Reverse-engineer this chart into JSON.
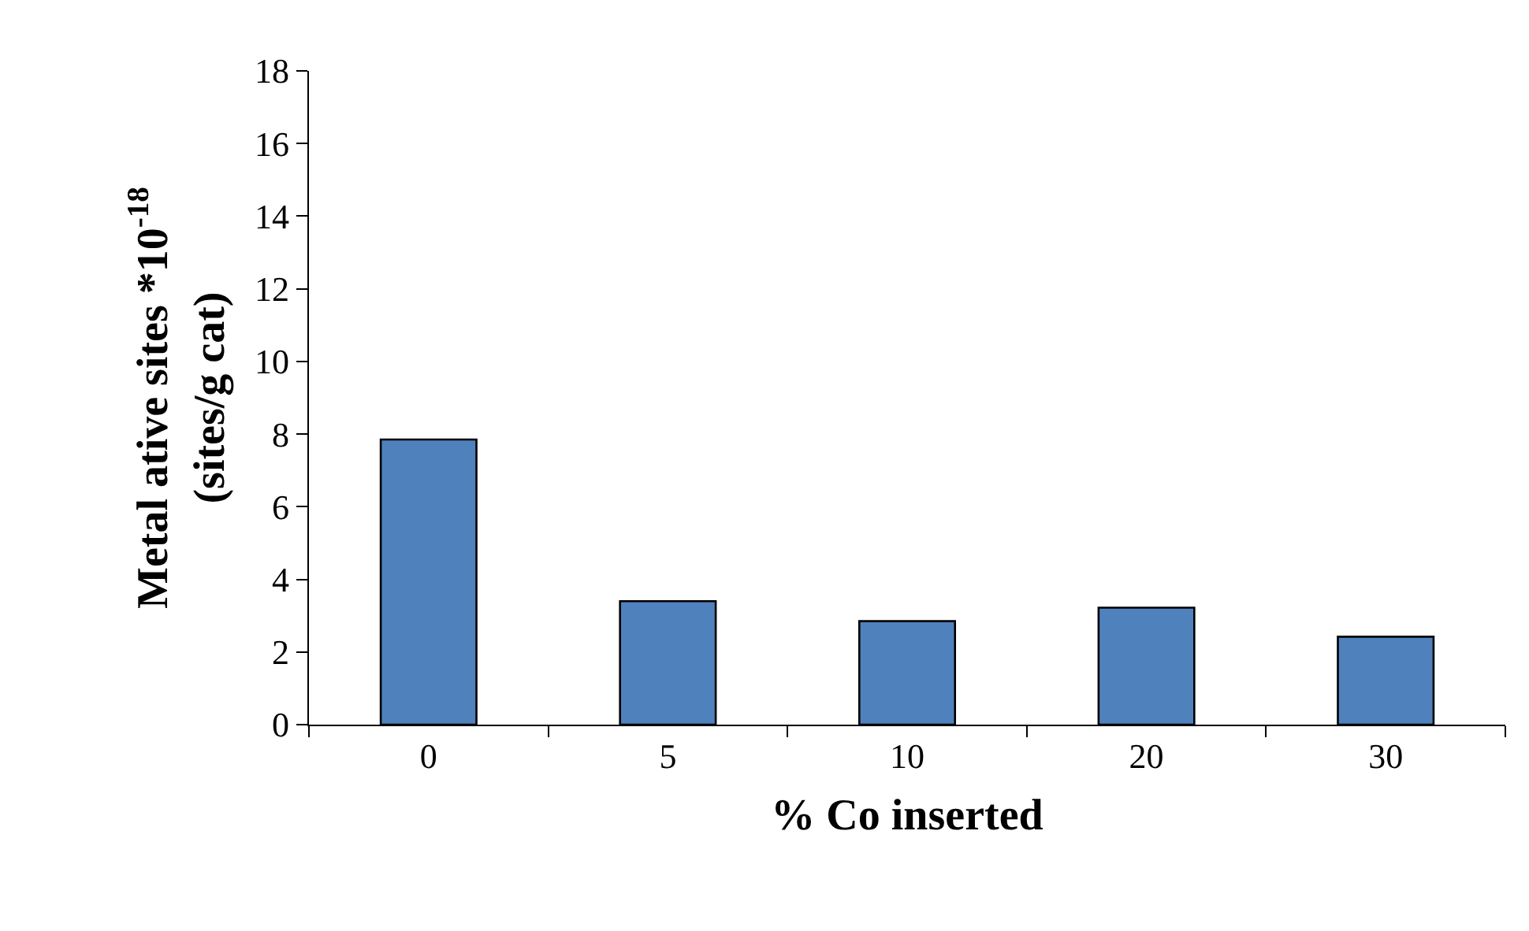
{
  "chart_data": {
    "type": "bar",
    "xlabel": "% Co inserted",
    "ylabel": "Metal ative sites *10$^{-18}$\n(sites/g cat)",
    "categories": [
      "0",
      "5",
      "10",
      "20",
      "30"
    ],
    "values": [
      7.85,
      3.4,
      2.85,
      3.22,
      2.42
    ],
    "color": "#4f81bd",
    "ylim": [
      0,
      18
    ],
    "yticks": [
      0,
      2,
      4,
      6,
      8,
      10,
      12,
      14,
      16,
      18
    ],
    "grid": false
  }
}
